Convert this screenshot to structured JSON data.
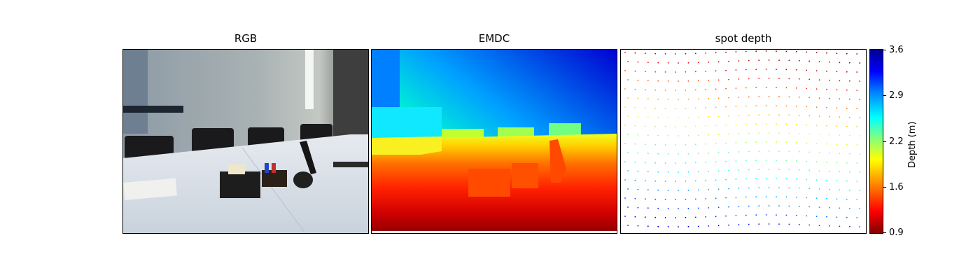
{
  "panels": [
    {
      "title": "RGB"
    },
    {
      "title": "EMDC"
    },
    {
      "title": "spot depth"
    }
  ],
  "colorbar": {
    "label": "Depth (m)",
    "ticks": [
      "3.6",
      "2.9",
      "2.2",
      "1.6",
      "0.9"
    ],
    "range": [
      0.9,
      3.6
    ],
    "colormap": "jet"
  }
}
